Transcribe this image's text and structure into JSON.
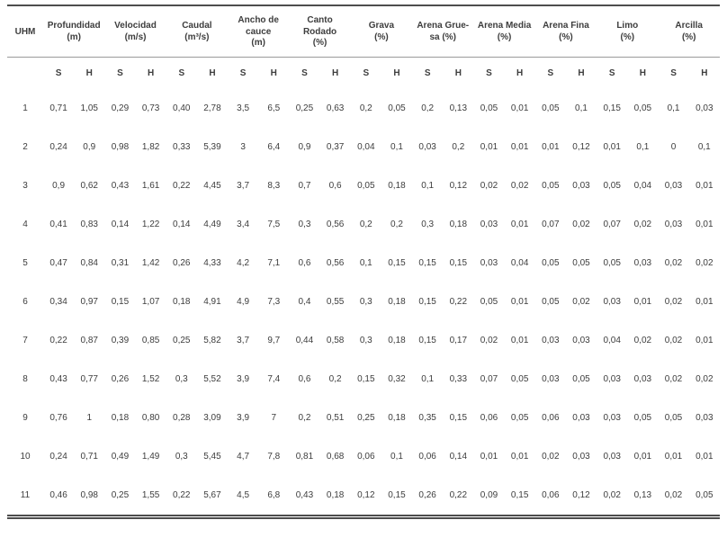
{
  "table": {
    "uhm_header": "UHM",
    "sub_headers": [
      "S",
      "H"
    ],
    "groups": [
      {
        "label": "Profundidad\n(m)"
      },
      {
        "label": "Velocidad\n(m/s)"
      },
      {
        "label": "Caudal\n(m³/s)"
      },
      {
        "label": "Ancho de\ncauce\n(m)"
      },
      {
        "label": "Canto Rodado\n(%)"
      },
      {
        "label": "Grava\n(%)"
      },
      {
        "label": "Arena Grue-\nsa (%)"
      },
      {
        "label": "Arena Media\n(%)"
      },
      {
        "label": "Arena Fina\n(%)"
      },
      {
        "label": "Limo\n(%)"
      },
      {
        "label": "Arcilla\n(%)"
      }
    ],
    "rows": [
      {
        "uhm": "1",
        "values": [
          "0,71",
          "1,05",
          "0,29",
          "0,73",
          "0,40",
          "2,78",
          "3,5",
          "6,5",
          "0,25",
          "0,63",
          "0,2",
          "0,05",
          "0,2",
          "0,13",
          "0,05",
          "0,01",
          "0,05",
          "0,1",
          "0,15",
          "0,05",
          "0,1",
          "0,03"
        ]
      },
      {
        "uhm": "2",
        "values": [
          "0,24",
          "0,9",
          "0,98",
          "1,82",
          "0,33",
          "5,39",
          "3",
          "6,4",
          "0,9",
          "0,37",
          "0,04",
          "0,1",
          "0,03",
          "0,2",
          "0,01",
          "0,01",
          "0,01",
          "0,12",
          "0,01",
          "0,1",
          "0",
          "0,1"
        ]
      },
      {
        "uhm": "3",
        "values": [
          "0,9",
          "0,62",
          "0,43",
          "1,61",
          "0,22",
          "4,45",
          "3,7",
          "8,3",
          "0,7",
          "0,6",
          "0,05",
          "0,18",
          "0,1",
          "0,12",
          "0,02",
          "0,02",
          "0,05",
          "0,03",
          "0,05",
          "0,04",
          "0,03",
          "0,01"
        ]
      },
      {
        "uhm": "4",
        "values": [
          "0,41",
          "0,83",
          "0,14",
          "1,22",
          "0,14",
          "4,49",
          "3,4",
          "7,5",
          "0,3",
          "0,56",
          "0,2",
          "0,2",
          "0,3",
          "0,18",
          "0,03",
          "0,01",
          "0,07",
          "0,02",
          "0,07",
          "0,02",
          "0,03",
          "0,01"
        ]
      },
      {
        "uhm": "5",
        "values": [
          "0,47",
          "0,84",
          "0,31",
          "1,42",
          "0,26",
          "4,33",
          "4,2",
          "7,1",
          "0,6",
          "0,56",
          "0,1",
          "0,15",
          "0,15",
          "0,15",
          "0,03",
          "0,04",
          "0,05",
          "0,05",
          "0,05",
          "0,03",
          "0,02",
          "0,02"
        ]
      },
      {
        "uhm": "6",
        "values": [
          "0,34",
          "0,97",
          "0,15",
          "1,07",
          "0,18",
          "4,91",
          "4,9",
          "7,3",
          "0,4",
          "0,55",
          "0,3",
          "0,18",
          "0,15",
          "0,22",
          "0,05",
          "0,01",
          "0,05",
          "0,02",
          "0,03",
          "0,01",
          "0,02",
          "0,01"
        ]
      },
      {
        "uhm": "7",
        "values": [
          "0,22",
          "0,87",
          "0,39",
          "0,85",
          "0,25",
          "5,82",
          "3,7",
          "9,7",
          "0,44",
          "0,58",
          "0,3",
          "0,18",
          "0,15",
          "0,17",
          "0,02",
          "0,01",
          "0,03",
          "0,03",
          "0,04",
          "0,02",
          "0,02",
          "0,01"
        ]
      },
      {
        "uhm": "8",
        "values": [
          "0,43",
          "0,77",
          "0,26",
          "1,52",
          "0,3",
          "5,52",
          "3,9",
          "7,4",
          "0,6",
          "0,2",
          "0,15",
          "0,32",
          "0,1",
          "0,33",
          "0,07",
          "0,05",
          "0,03",
          "0,05",
          "0,03",
          "0,03",
          "0,02",
          "0,02"
        ]
      },
      {
        "uhm": "9",
        "values": [
          "0,76",
          "1",
          "0,18",
          "0,80",
          "0,28",
          "3,09",
          "3,9",
          "7",
          "0,2",
          "0,51",
          "0,25",
          "0,18",
          "0,35",
          "0,15",
          "0,06",
          "0,05",
          "0,06",
          "0,03",
          "0,03",
          "0,05",
          "0,05",
          "0,03"
        ]
      },
      {
        "uhm": "10",
        "values": [
          "0,24",
          "0,71",
          "0,49",
          "1,49",
          "0,3",
          "5,45",
          "4,7",
          "7,8",
          "0,81",
          "0,68",
          "0,06",
          "0,1",
          "0,06",
          "0,14",
          "0,01",
          "0,01",
          "0,02",
          "0,03",
          "0,03",
          "0,01",
          "0,01",
          "0,01"
        ]
      },
      {
        "uhm": "11",
        "values": [
          "0,46",
          "0,98",
          "0,25",
          "1,55",
          "0,22",
          "5,67",
          "4,5",
          "6,8",
          "0,43",
          "0,18",
          "0,12",
          "0,15",
          "0,26",
          "0,22",
          "0,09",
          "0,15",
          "0,06",
          "0,12",
          "0,02",
          "0,13",
          "0,02",
          "0,05"
        ]
      }
    ]
  }
}
